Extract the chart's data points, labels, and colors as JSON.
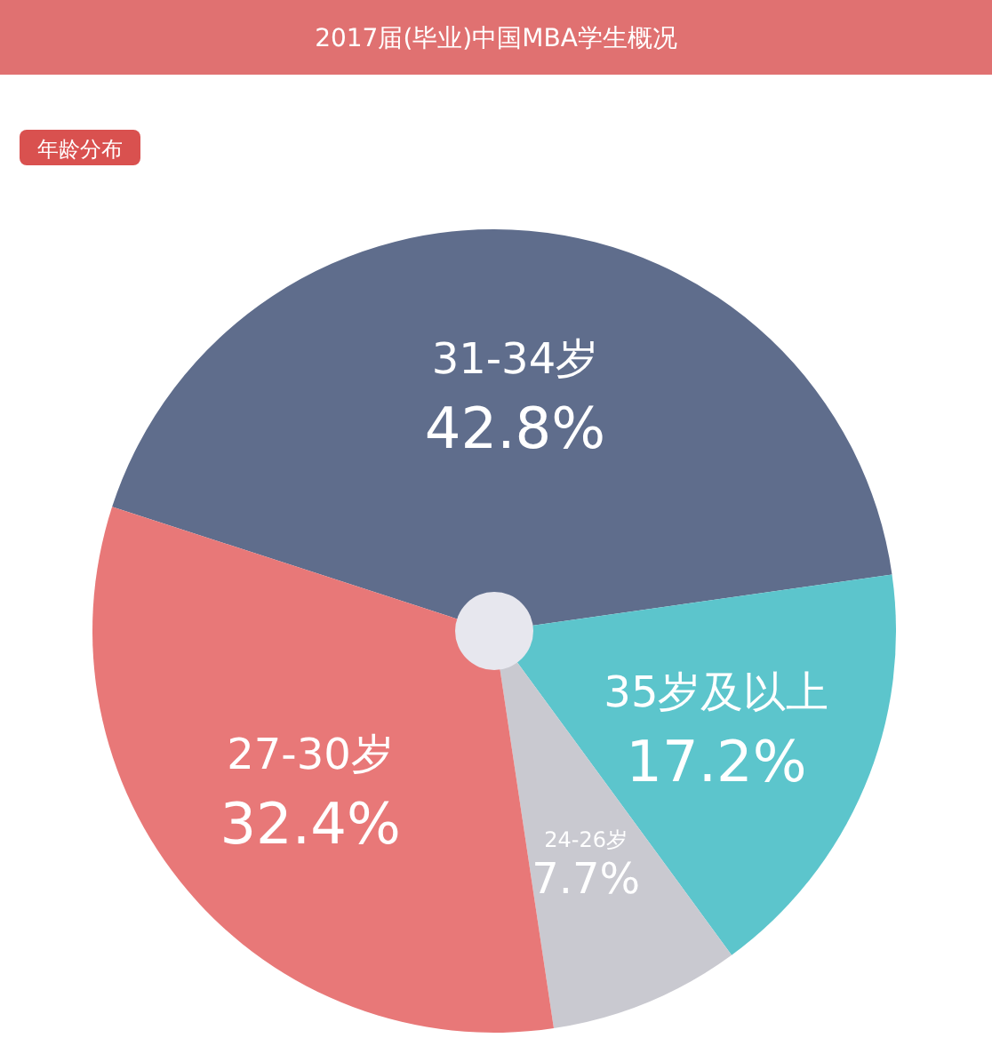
{
  "chart_data": {
    "type": "pie",
    "title": "2017届(毕业)中国MBA学生概况",
    "subtitle": "年龄分布",
    "categories": [
      "31-34岁",
      "35岁及以上",
      "24-26岁",
      "27-30岁"
    ],
    "values": [
      42.8,
      17.2,
      7.7,
      32.4
    ],
    "colors": [
      "#5f6d8c",
      "#5cc5cc",
      "#c9c9d0",
      "#e87878"
    ],
    "value_labels": [
      "42.8%",
      "17.2%",
      "7.7%",
      "32.4%"
    ]
  }
}
